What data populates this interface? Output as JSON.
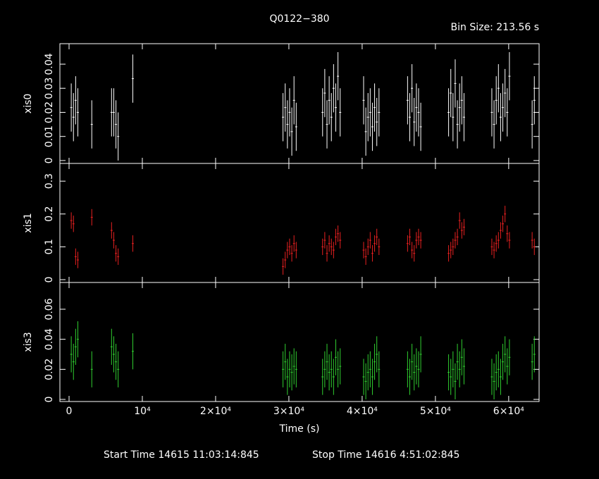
{
  "chart_data": [
    {
      "type": "errorbar",
      "title": "Q0122−380",
      "subtitle": "Bin Size: 213.56 s",
      "ylabel": "xis0",
      "color": "#ffffff",
      "x": [
        300,
        600,
        900,
        1200,
        3100,
        5800,
        6100,
        6400,
        6700,
        8700,
        29200,
        29500,
        29800,
        30100,
        30400,
        30700,
        31000,
        34600,
        34900,
        35200,
        35500,
        35800,
        36100,
        36400,
        36700,
        37000,
        40200,
        40500,
        40800,
        41100,
        41400,
        41700,
        42000,
        42300,
        46200,
        46500,
        46800,
        47100,
        47400,
        47700,
        48000,
        51800,
        52100,
        52400,
        52700,
        53000,
        53300,
        53600,
        53900,
        57700,
        58000,
        58300,
        58600,
        58900,
        59200,
        59500,
        59800,
        60100,
        63200,
        63500
      ],
      "values": [
        0.022,
        0.018,
        0.025,
        0.02,
        0.015,
        0.02,
        0.02,
        0.015,
        0.01,
        0.034,
        0.018,
        0.022,
        0.015,
        0.02,
        0.012,
        0.025,
        0.014,
        0.02,
        0.028,
        0.015,
        0.025,
        0.018,
        0.03,
        0.022,
        0.035,
        0.02,
        0.025,
        0.012,
        0.018,
        0.02,
        0.014,
        0.022,
        0.016,
        0.02,
        0.025,
        0.018,
        0.03,
        0.016,
        0.022,
        0.02,
        0.014,
        0.02,
        0.028,
        0.018,
        0.032,
        0.015,
        0.022,
        0.025,
        0.018,
        0.02,
        0.015,
        0.025,
        0.03,
        0.018,
        0.022,
        0.028,
        0.02,
        0.035,
        0.015,
        0.025
      ],
      "error": 0.01,
      "ylim": [
        -0.0012,
        0.0485
      ],
      "yticks": [
        0,
        0.01,
        0.02,
        0.03,
        0.04
      ]
    },
    {
      "type": "errorbar",
      "ylabel": "xis1",
      "color": "#e82020",
      "x": [
        300,
        600,
        900,
        1200,
        3100,
        5800,
        6100,
        6400,
        6700,
        8700,
        29200,
        29500,
        29800,
        30100,
        30400,
        30700,
        31000,
        34600,
        34900,
        35200,
        35500,
        35800,
        36100,
        36400,
        36700,
        37000,
        40200,
        40500,
        40800,
        41100,
        41400,
        41700,
        42000,
        42300,
        46200,
        46500,
        46800,
        47100,
        47400,
        47700,
        48000,
        51800,
        52100,
        52400,
        52700,
        53000,
        53300,
        53600,
        53900,
        57700,
        58000,
        58300,
        58600,
        58900,
        59200,
        59500,
        59800,
        60100,
        63200,
        63500
      ],
      "values": [
        0.18,
        0.17,
        0.07,
        0.06,
        0.19,
        0.15,
        0.12,
        0.08,
        0.07,
        0.11,
        0.04,
        0.06,
        0.09,
        0.1,
        0.08,
        0.11,
        0.09,
        0.1,
        0.12,
        0.08,
        0.11,
        0.1,
        0.09,
        0.13,
        0.14,
        0.12,
        0.09,
        0.07,
        0.1,
        0.12,
        0.08,
        0.11,
        0.13,
        0.1,
        0.11,
        0.13,
        0.09,
        0.08,
        0.12,
        0.13,
        0.12,
        0.08,
        0.09,
        0.1,
        0.12,
        0.13,
        0.18,
        0.15,
        0.16,
        0.1,
        0.09,
        0.11,
        0.12,
        0.15,
        0.17,
        0.2,
        0.14,
        0.12,
        0.12,
        0.1
      ],
      "error": 0.025,
      "ylim": [
        -0.0086,
        0.354
      ],
      "yticks": [
        0,
        0.1,
        0.2,
        0.3
      ]
    },
    {
      "type": "errorbar",
      "ylabel": "xis3",
      "color": "#30d030",
      "xlabel": "Time (s)",
      "x": [
        300,
        600,
        900,
        1200,
        3100,
        5800,
        6100,
        6400,
        6700,
        8700,
        29200,
        29500,
        29800,
        30100,
        30400,
        30700,
        31000,
        34600,
        34900,
        35200,
        35500,
        35800,
        36100,
        36400,
        36700,
        37000,
        40200,
        40500,
        40800,
        41100,
        41400,
        41700,
        42000,
        42300,
        46200,
        46500,
        46800,
        47100,
        47400,
        47700,
        48000,
        51800,
        52100,
        52400,
        52700,
        53000,
        53300,
        53600,
        53900,
        57700,
        58000,
        58300,
        58600,
        58900,
        59200,
        59500,
        59800,
        60100,
        63200,
        63500
      ],
      "values": [
        0.03,
        0.025,
        0.035,
        0.04,
        0.02,
        0.035,
        0.03,
        0.025,
        0.02,
        0.032,
        0.02,
        0.025,
        0.015,
        0.02,
        0.018,
        0.022,
        0.02,
        0.015,
        0.02,
        0.025,
        0.018,
        0.02,
        0.015,
        0.028,
        0.02,
        0.022,
        0.015,
        0.012,
        0.018,
        0.02,
        0.015,
        0.025,
        0.03,
        0.02,
        0.02,
        0.015,
        0.025,
        0.018,
        0.022,
        0.02,
        0.03,
        0.018,
        0.015,
        0.02,
        0.012,
        0.025,
        0.02,
        0.028,
        0.022,
        0.015,
        0.012,
        0.018,
        0.02,
        0.015,
        0.025,
        0.03,
        0.022,
        0.028,
        0.025,
        0.03
      ],
      "error": 0.012,
      "ylim": [
        -0.0014,
        0.0778
      ],
      "yticks": [
        0,
        0.02,
        0.04,
        0.06
      ],
      "xlim": [
        -1250,
        64150
      ],
      "xticks": [
        0,
        {
          "value": 10000,
          "label": "10⁴"
        },
        {
          "value": 20000,
          "label": "2×10⁴"
        },
        {
          "value": 30000,
          "label": "3×10⁴"
        },
        {
          "value": 40000,
          "label": "4×10⁴"
        },
        {
          "value": 50000,
          "label": "5×10⁴"
        },
        {
          "value": 60000,
          "label": "6×10⁴"
        }
      ],
      "footer": [
        "Start Time 14615 11:03:14:845",
        "Stop Time 14616  4:51:02:845"
      ]
    }
  ]
}
